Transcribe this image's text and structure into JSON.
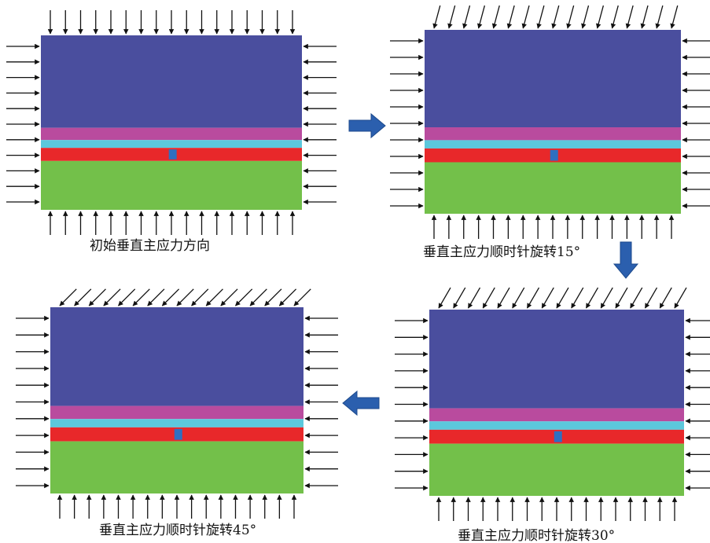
{
  "captions": {
    "p1": "初始垂直主应力方向",
    "p2": "垂直主应力顺时针旋转15°",
    "p3": "垂直主应力顺时针旋转30°",
    "p4": "垂直主应力顺时针旋转45°"
  },
  "rotation_degrees": {
    "p1": 0,
    "p2": 15,
    "p3": 30,
    "p4": 45
  },
  "colors": {
    "layer_top": "#4A4E9E",
    "layer_magenta": "#B94B9E",
    "layer_cyan": "#5CC8DC",
    "layer_red": "#E8282A",
    "layer_green": "#73C04A",
    "marker": "#2F6FC0",
    "flow_arrow": "#2B5FAE",
    "load_arrow": "#111111"
  }
}
